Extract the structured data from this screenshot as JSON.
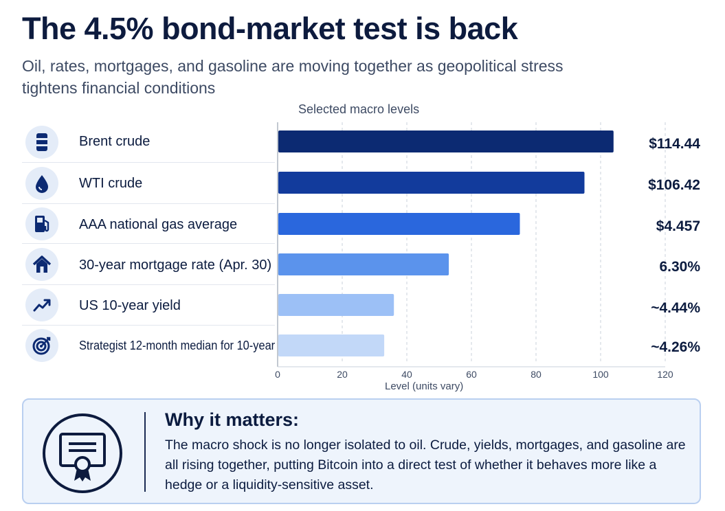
{
  "header": {
    "title": "The 4.5% bond-market test is back",
    "subtitle": "Oil, rates, mortgages, and gasoline are moving together as geopolitical stress tightens financial conditions"
  },
  "rows": [
    {
      "label": "Brent crude",
      "value_label": "$114.44",
      "icon": "oil-barrel-icon"
    },
    {
      "label": "WTI crude",
      "value_label": "$106.42",
      "icon": "oil-drop-icon"
    },
    {
      "label": "AAA national gas average",
      "value_label": "$4.457",
      "icon": "gas-pump-icon"
    },
    {
      "label": "30-year mortgage rate (Apr. 30)",
      "value_label": "6.30%",
      "icon": "house-icon"
    },
    {
      "label": "US 10-year yield",
      "value_label": "~4.44%",
      "icon": "trend-up-icon"
    },
    {
      "label": "Strategist 12-month median for 10-year",
      "value_label": "~4.26%",
      "icon": "target-icon"
    }
  ],
  "chart_data": {
    "type": "bar",
    "orientation": "horizontal",
    "title": "Selected macro levels",
    "xlabel": "Level (units vary)",
    "xlim": [
      0,
      120
    ],
    "xticks": [
      0,
      20,
      40,
      60,
      80,
      100,
      120
    ],
    "grid": true,
    "categories": [
      "Brent crude",
      "WTI crude",
      "AAA national gas average",
      "30-year mortgage rate (Apr. 30)",
      "US 10-year yield",
      "Strategist 12-month median for 10-year"
    ],
    "values": [
      104,
      95,
      75,
      53,
      36,
      33
    ],
    "value_labels": [
      "$114.44",
      "$106.42",
      "$4.457",
      "6.30%",
      "~4.44%",
      "~4.26%"
    ],
    "colors": [
      "#0c2a72",
      "#123b9c",
      "#2a67dd",
      "#5b93ec",
      "#9cc0f6",
      "#c2d8f8"
    ]
  },
  "callout": {
    "heading": "Why it matters:",
    "body": "The macro shock is no longer isolated to oil. Crude, yields, mortgages, and gasoline are all rising together, putting Bitcoin into a direct test of whether it behaves more like a hedge or a liquidity-sensitive asset.",
    "icon": "certificate-icon"
  }
}
